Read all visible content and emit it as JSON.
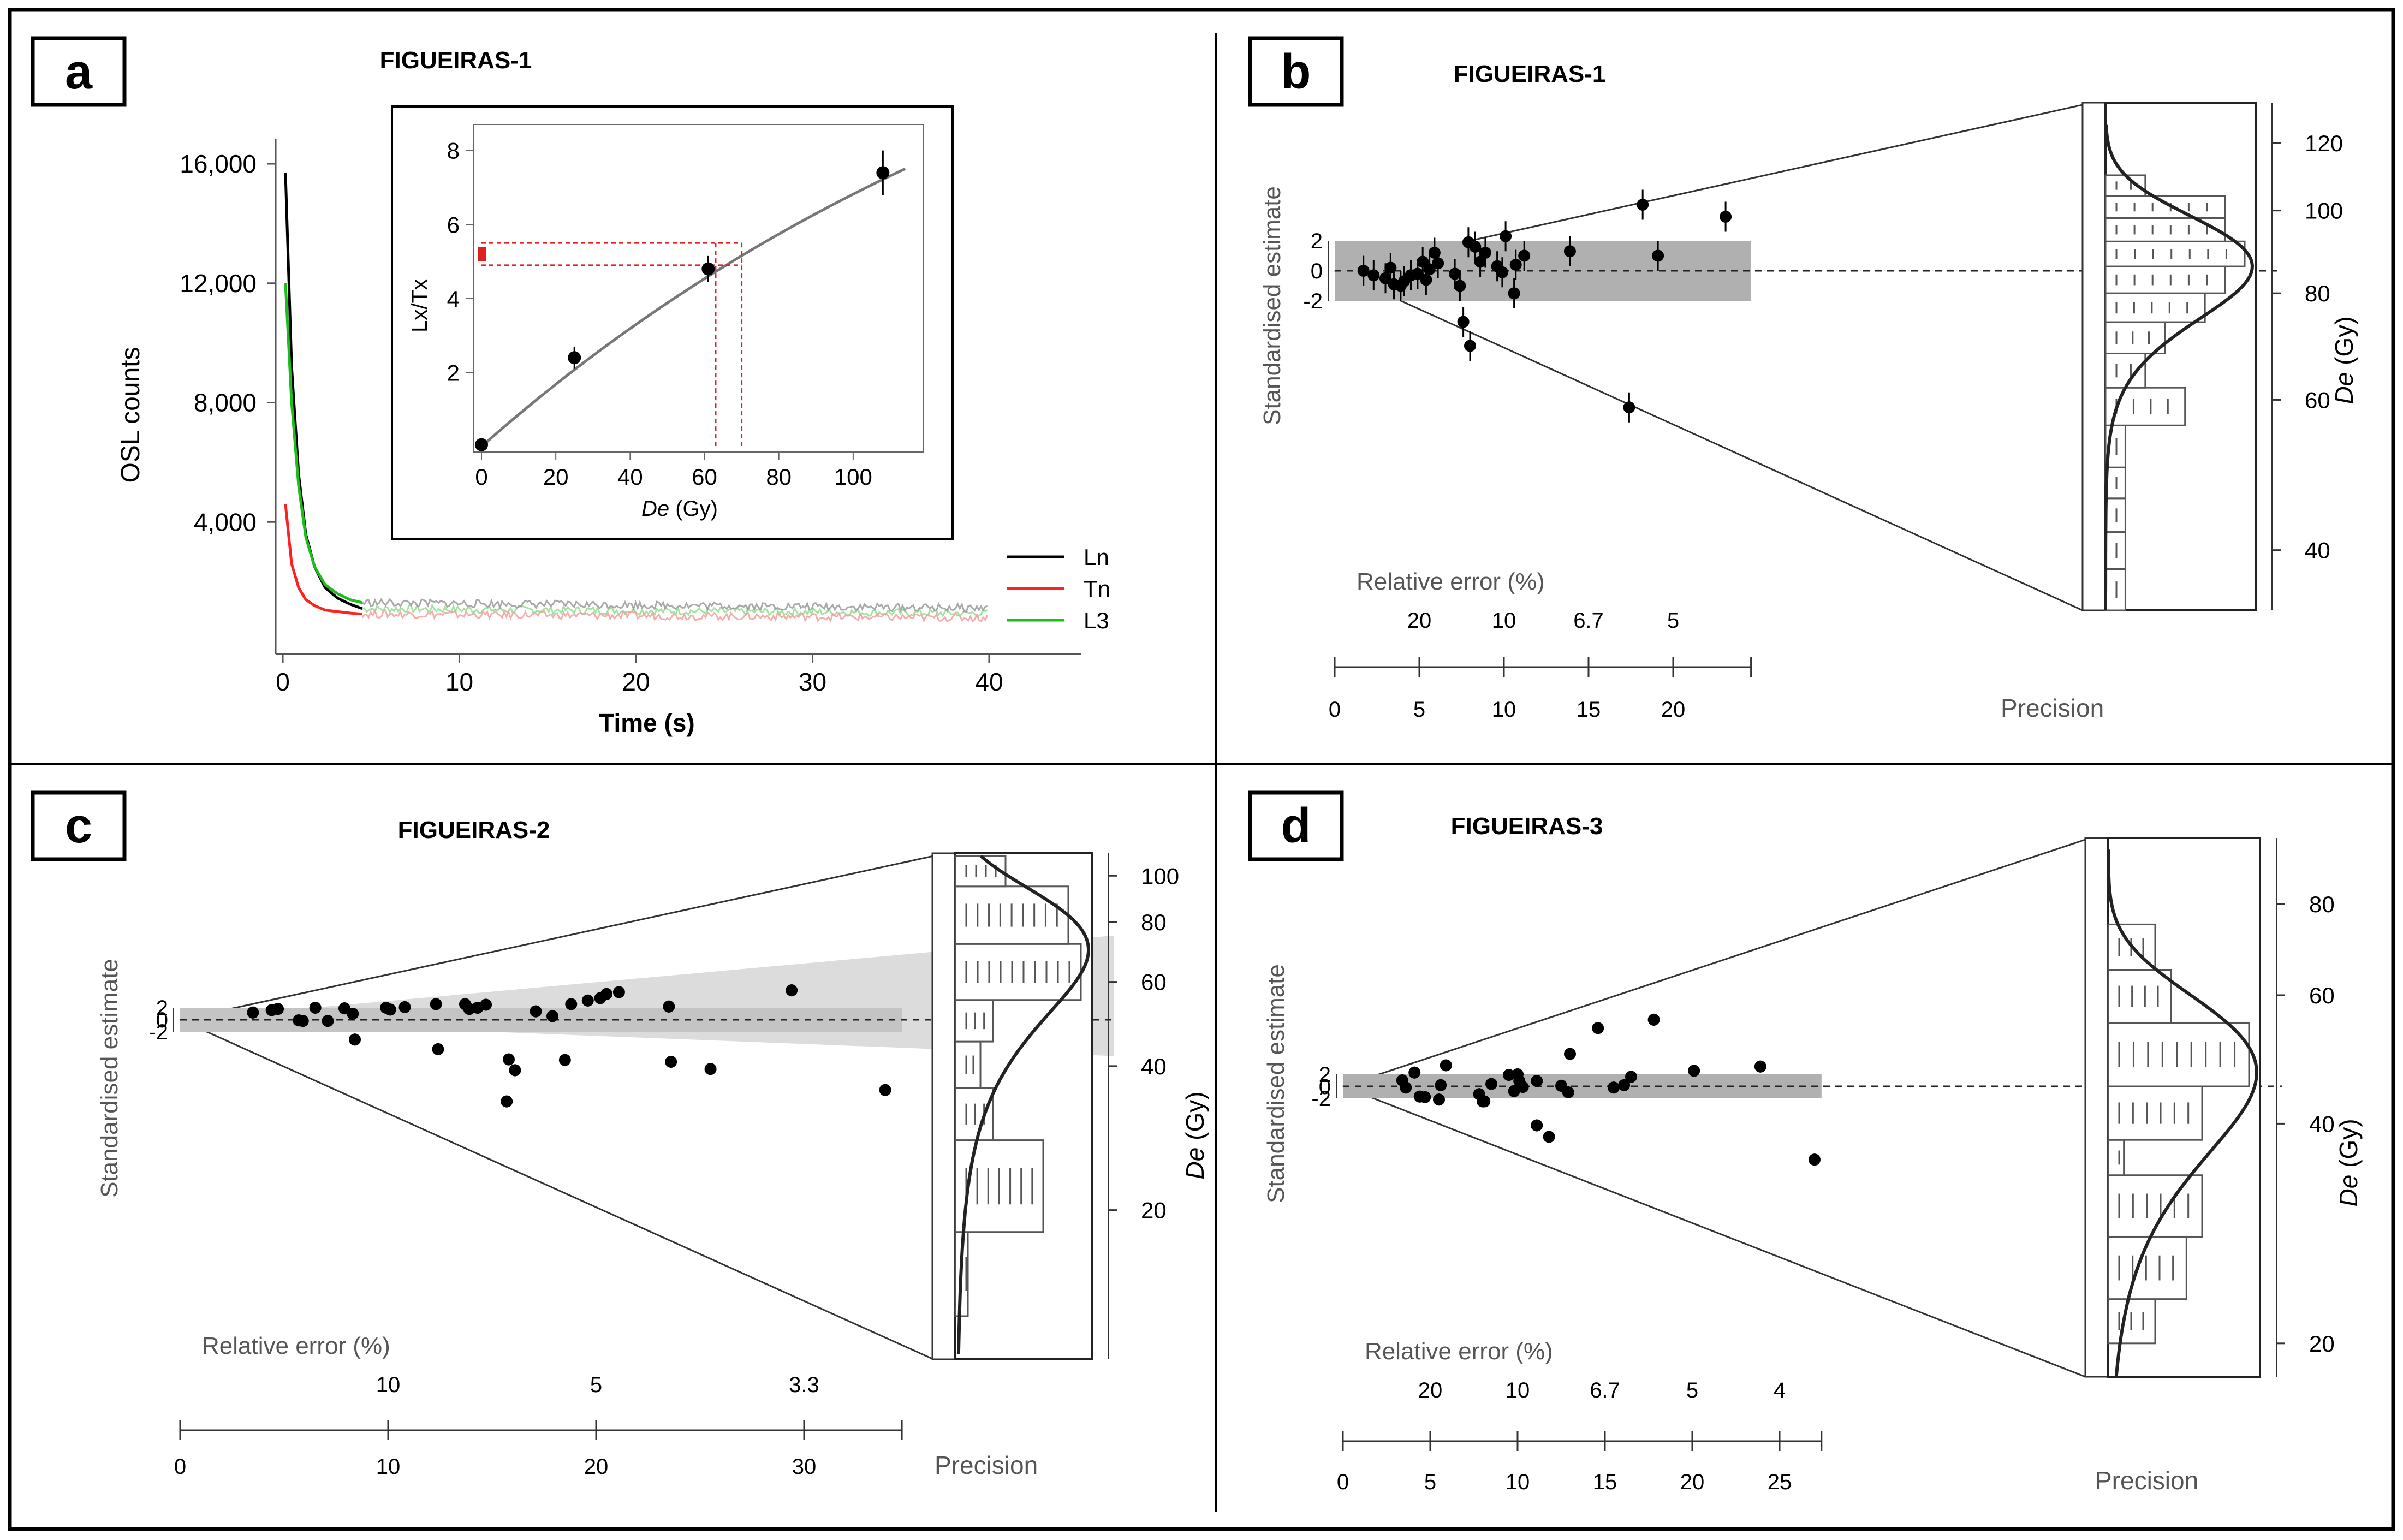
{
  "panels": {
    "a": {
      "letter": "a",
      "title": "FIGUEIRAS-1",
      "chart_data": {
        "type": "line",
        "xlabel": "Time (s)",
        "ylabel": "OSL counts",
        "xlim": [
          0,
          40
        ],
        "ylim": [
          0,
          16000
        ],
        "x_ticks": [
          0,
          10,
          20,
          30,
          40
        ],
        "y_ticks": [
          4000,
          8000,
          12000,
          16000
        ],
        "y_tick_labels": [
          "4,000",
          "8,000",
          "12,000",
          "16,000"
        ],
        "legend_placement": "right",
        "series": [
          {
            "name": "Ln",
            "color": "#000000",
            "x": [
              0.15,
              0.5,
              0.9,
              1.3,
              1.8,
              2.4,
              3.1,
              3.8,
              4.5
            ],
            "y": [
              15700,
              9200,
              5600,
              3600,
              2500,
              1800,
              1450,
              1250,
              1100
            ]
          },
          {
            "name": "Tn",
            "color": "#ff2020",
            "x": [
              0.15,
              0.5,
              0.9,
              1.3,
              1.8,
              2.4,
              3.1,
              3.8,
              4.5
            ],
            "y": [
              4600,
              2600,
              1800,
              1400,
              1200,
              1050,
              1000,
              950,
              920
            ]
          },
          {
            "name": "L3",
            "color": "#19c019",
            "x": [
              0.15,
              0.5,
              0.9,
              1.3,
              1.8,
              2.4,
              3.1,
              3.8,
              4.5
            ],
            "y": [
              12000,
              8000,
              5200,
              3500,
              2500,
              1900,
              1600,
              1400,
              1300
            ]
          }
        ],
        "inset": {
          "type": "scatter",
          "xlabel": "De (Gy)",
          "ylabel": "Lx/Tx",
          "xlim": [
            0,
            115
          ],
          "ylim": [
            0,
            8.6
          ],
          "x_ticks": [
            0,
            20,
            40,
            60,
            80,
            100
          ],
          "y_ticks": [
            2,
            4,
            6,
            8
          ],
          "points": [
            {
              "x": 0,
              "y": 0.05,
              "err": 0
            },
            {
              "x": 25,
              "y": 2.4,
              "err": 0.3
            },
            {
              "x": 61,
              "y": 4.8,
              "err": 0.35
            },
            {
              "x": 108,
              "y": 7.4,
              "err": 0.6
            }
          ],
          "natural": {
            "x": 0,
            "y": 5.2,
            "color": "#e02020"
          },
          "projection_x": [
            63,
            70
          ],
          "projection_y": [
            4.9,
            5.5
          ]
        }
      }
    },
    "b": {
      "letter": "b",
      "title": "FIGUEIRAS-1",
      "chart_data": {
        "type": "scatter",
        "subtype": "radial",
        "ylabel_left": "Standardised estimate",
        "ylabel_right": "De (Gy)",
        "central_de": 85,
        "std_ticks": [
          "2",
          "0",
          "-2"
        ],
        "relative_error_label": "Relative error (%)",
        "relative_error_ticks": [
          {
            "label": "20",
            "prec": 5
          },
          {
            "label": "10",
            "prec": 10
          },
          {
            "label": "6.7",
            "prec": 15
          },
          {
            "label": "5",
            "prec": 20
          }
        ],
        "precision_label": "Precision",
        "precision_ticks": [
          0,
          5,
          10,
          15,
          20
        ],
        "precision_max": 24.6,
        "de_ticks": [
          40,
          60,
          80,
          100,
          120
        ],
        "de_range": [
          34,
          126
        ],
        "band": "single",
        "points": [
          [
            1.7,
            0.0
          ],
          [
            2.3,
            -0.3
          ],
          [
            3.0,
            -0.5
          ],
          [
            3.3,
            0.2
          ],
          [
            3.5,
            -0.9
          ],
          [
            3.9,
            -1.0
          ],
          [
            4.1,
            -0.7
          ],
          [
            4.5,
            -0.3
          ],
          [
            4.9,
            -0.2
          ],
          [
            5.2,
            0.6
          ],
          [
            5.4,
            -0.6
          ],
          [
            5.6,
            0.1
          ],
          [
            5.9,
            1.2
          ],
          [
            6.1,
            0.5
          ],
          [
            7.1,
            -0.2
          ],
          [
            7.4,
            -1.0
          ],
          [
            7.6,
            -3.4
          ],
          [
            7.9,
            1.9
          ],
          [
            8.0,
            -5.0
          ],
          [
            8.3,
            1.6
          ],
          [
            8.6,
            0.6
          ],
          [
            8.9,
            1.2
          ],
          [
            9.6,
            0.3
          ],
          [
            9.9,
            -0.1
          ],
          [
            10.1,
            2.3
          ],
          [
            10.6,
            -1.5
          ],
          [
            10.7,
            0.4
          ],
          [
            11.2,
            1.0
          ],
          [
            13.9,
            1.3
          ],
          [
            17.4,
            -9.1
          ],
          [
            18.2,
            4.4
          ],
          [
            19.1,
            1.0
          ],
          [
            23.1,
            3.6
          ]
        ],
        "histogram": [
          {
            "from": 34,
            "to": 38,
            "count": 1
          },
          {
            "from": 38,
            "to": 42,
            "count": 1
          },
          {
            "from": 42,
            "to": 46,
            "count": 1
          },
          {
            "from": 46,
            "to": 50,
            "count": 1
          },
          {
            "from": 50,
            "to": 56,
            "count": 1
          },
          {
            "from": 56,
            "to": 62,
            "count": 4
          },
          {
            "from": 62,
            "to": 68,
            "count": 2
          },
          {
            "from": 68,
            "to": 74,
            "count": 3
          },
          {
            "from": 74,
            "to": 80,
            "count": 5
          },
          {
            "from": 80,
            "to": 86,
            "count": 6
          },
          {
            "from": 86,
            "to": 92,
            "count": 7
          },
          {
            "from": 92,
            "to": 98,
            "count": 6
          },
          {
            "from": 98,
            "to": 104,
            "count": 6
          },
          {
            "from": 104,
            "to": 110,
            "count": 2
          }
        ],
        "kde": {
          "center": 86,
          "sd": 12,
          "scale": 1.0
        }
      }
    },
    "c": {
      "letter": "c",
      "title": "FIGUEIRAS-2",
      "chart_data": {
        "type": "scatter",
        "subtype": "radial",
        "ylabel_left": "Standardised estimate",
        "ylabel_right": "De (Gy)",
        "central_de": 50,
        "std_ticks": [
          "2",
          "0",
          "-2"
        ],
        "relative_error_label": "Relative error (%)",
        "relative_error_ticks": [
          {
            "label": "10",
            "prec": 10
          },
          {
            "label": "5",
            "prec": 20
          },
          {
            "label": "3.3",
            "prec": 30
          }
        ],
        "precision_label": "Precision",
        "precision_ticks": [
          0,
          10,
          20,
          30
        ],
        "precision_max": 34.7,
        "de_ticks": [
          20,
          40,
          60,
          80,
          100
        ],
        "de_range": [
          10,
          110
        ],
        "band": "double",
        "band2_de": [
          42,
          75
        ],
        "points": [
          [
            3.5,
            1.2
          ],
          [
            4.4,
            1.6
          ],
          [
            4.7,
            1.8
          ],
          [
            5.7,
            -0.1
          ],
          [
            5.9,
            -0.2
          ],
          [
            6.5,
            2.0
          ],
          [
            7.1,
            -0.2
          ],
          [
            7.9,
            1.9
          ],
          [
            8.3,
            1.0
          ],
          [
            8.4,
            -3.3
          ],
          [
            9.9,
            2.0
          ],
          [
            10.1,
            1.7
          ],
          [
            10.8,
            2.1
          ],
          [
            12.3,
            2.6
          ],
          [
            12.4,
            -4.9
          ],
          [
            13.7,
            2.6
          ],
          [
            13.9,
            1.8
          ],
          [
            14.3,
            2.0
          ],
          [
            14.7,
            2.5
          ],
          [
            15.8,
            -6.6
          ],
          [
            15.7,
            -13.6
          ],
          [
            16.1,
            -8.4
          ],
          [
            17.1,
            1.4
          ],
          [
            17.9,
            0.6
          ],
          [
            18.5,
            -6.7
          ],
          [
            18.8,
            2.6
          ],
          [
            19.6,
            3.2
          ],
          [
            20.2,
            3.6
          ],
          [
            20.5,
            4.3
          ],
          [
            21.1,
            4.6
          ],
          [
            23.5,
            2.2
          ],
          [
            23.6,
            -7.0
          ],
          [
            25.5,
            -8.2
          ],
          [
            29.4,
            4.9
          ],
          [
            33.9,
            -11.7
          ]
        ],
        "histogram": [
          {
            "from": 12,
            "to": 18,
            "count": 1
          },
          {
            "from": 18,
            "to": 28,
            "count": 7
          },
          {
            "from": 28,
            "to": 36,
            "count": 3
          },
          {
            "from": 36,
            "to": 45,
            "count": 2
          },
          {
            "from": 45,
            "to": 55,
            "count": 3
          },
          {
            "from": 55,
            "to": 72,
            "count": 10
          },
          {
            "from": 72,
            "to": 95,
            "count": 9
          },
          {
            "from": 95,
            "to": 110,
            "count": 4
          }
        ],
        "kde": {
          "center": 70,
          "sd": 22,
          "scale": 1.0
        }
      }
    },
    "d": {
      "letter": "d",
      "title": "FIGUEIRAS-3",
      "chart_data": {
        "type": "scatter",
        "subtype": "radial",
        "ylabel_left": "Standardised estimate",
        "ylabel_right": "De (Gy)",
        "central_de": 45,
        "std_ticks": [
          "2",
          "0",
          "-2"
        ],
        "relative_error_label": "Relative error (%)",
        "relative_error_ticks": [
          {
            "label": "20",
            "prec": 5
          },
          {
            "label": "10",
            "prec": 10
          },
          {
            "label": "6.7",
            "prec": 15
          },
          {
            "label": "5",
            "prec": 20
          },
          {
            "label": "4",
            "prec": 25
          }
        ],
        "precision_label": "Precision",
        "precision_ticks": [
          0,
          5,
          10,
          15,
          20,
          25
        ],
        "precision_max": 27.4,
        "de_ticks": [
          20,
          40,
          60,
          80
        ],
        "de_range": [
          18,
          95
        ],
        "band": "single",
        "points": [
          [
            3.4,
            1.0
          ],
          [
            3.6,
            -0.2
          ],
          [
            4.1,
            2.3
          ],
          [
            4.4,
            -1.7
          ],
          [
            4.7,
            -1.8
          ],
          [
            5.5,
            -2.2
          ],
          [
            5.6,
            0.2
          ],
          [
            5.9,
            3.5
          ],
          [
            7.8,
            -1.3
          ],
          [
            8.0,
            -2.5
          ],
          [
            8.1,
            -2.5
          ],
          [
            8.5,
            0.4
          ],
          [
            9.5,
            1.9
          ],
          [
            9.8,
            -0.8
          ],
          [
            10.0,
            2.0
          ],
          [
            10.1,
            0.9
          ],
          [
            10.3,
            -0.1
          ],
          [
            11.1,
            0.9
          ],
          [
            11.1,
            -6.5
          ],
          [
            11.8,
            -8.4
          ],
          [
            12.5,
            0.1
          ],
          [
            12.9,
            -1.0
          ],
          [
            13.0,
            5.4
          ],
          [
            14.6,
            9.7
          ],
          [
            15.5,
            -0.2
          ],
          [
            16.1,
            0.2
          ],
          [
            16.5,
            1.6
          ],
          [
            17.8,
            11.1
          ],
          [
            20.1,
            2.6
          ],
          [
            23.9,
            3.3
          ],
          [
            27.0,
            -12.2
          ]
        ],
        "histogram": [
          {
            "from": 20,
            "to": 23,
            "count": 3
          },
          {
            "from": 23,
            "to": 28,
            "count": 5
          },
          {
            "from": 28,
            "to": 34,
            "count": 6
          },
          {
            "from": 34,
            "to": 38,
            "count": 1
          },
          {
            "from": 38,
            "to": 45,
            "count": 6
          },
          {
            "from": 45,
            "to": 55,
            "count": 9
          },
          {
            "from": 55,
            "to": 65,
            "count": 4
          },
          {
            "from": 65,
            "to": 75,
            "count": 3
          }
        ],
        "kde": {
          "center": 47,
          "sd": 12,
          "scale": 1.0
        }
      }
    }
  }
}
